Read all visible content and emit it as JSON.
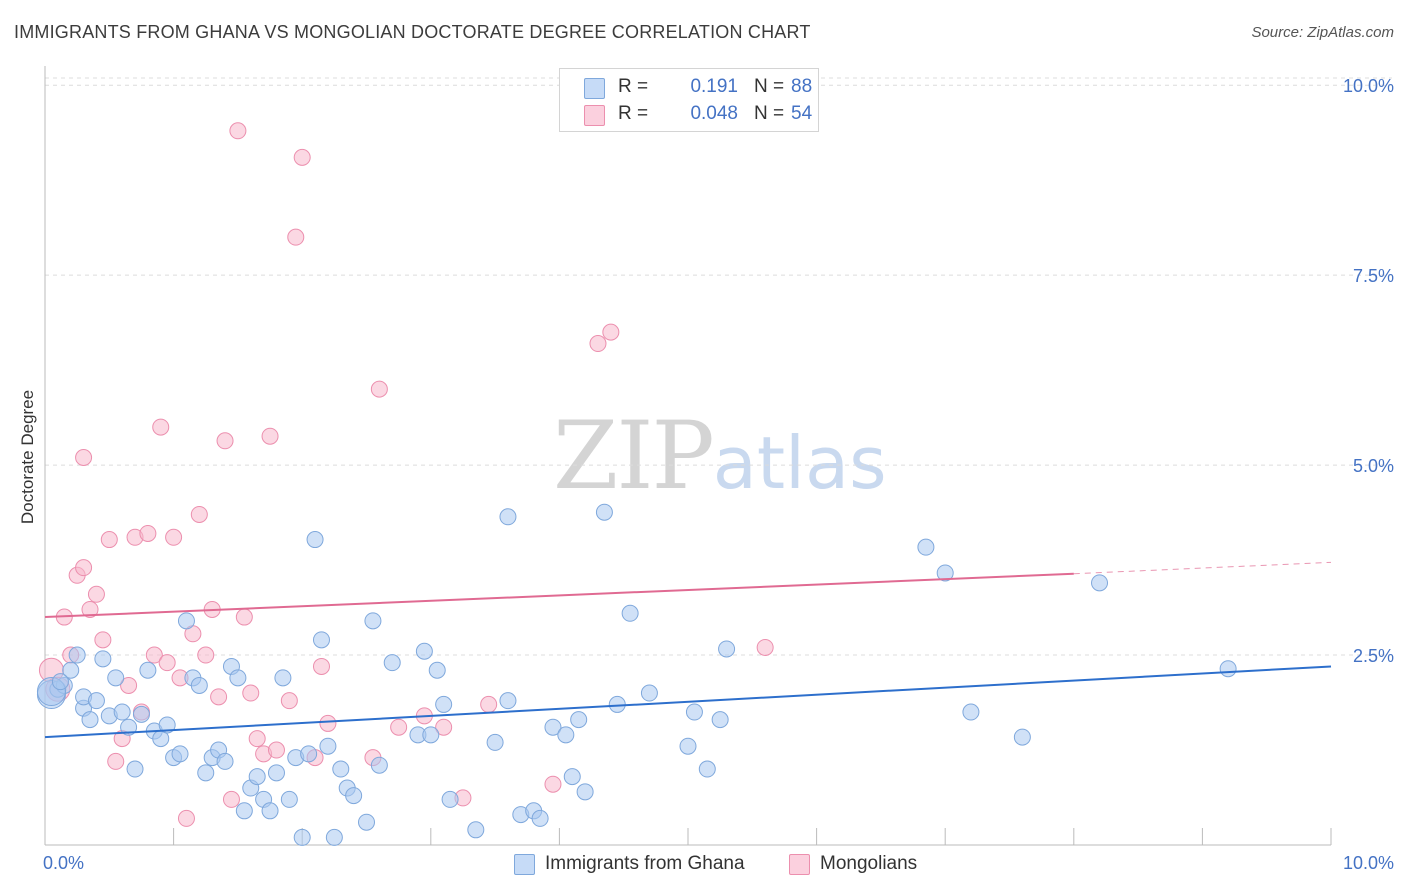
{
  "header": {
    "title": "IMMIGRANTS FROM GHANA VS MONGOLIAN DOCTORATE DEGREE CORRELATION CHART",
    "source": "Source: ZipAtlas.com"
  },
  "watermark": {
    "zip": "ZIP",
    "atlas": "atlas"
  },
  "legend": {
    "rows": [
      {
        "r_label": "R =",
        "r_value": "0.191",
        "n_label": "N =",
        "n_value": "88",
        "color": "#a9c8f0"
      },
      {
        "r_label": "R =",
        "r_value": "0.048",
        "n_label": "N =",
        "n_value": "54",
        "color": "#f7b8cc"
      }
    ]
  },
  "bottom_legend": {
    "series1": "Immigrants from Ghana",
    "series2": "Mongolians"
  },
  "colors": {
    "blue_fill": "#a9c8f0",
    "blue_stroke": "#7fa8dc",
    "blue_line": "#2d6fcc",
    "pink_fill": "#f7b8cc",
    "pink_stroke": "#ec8fae",
    "pink_line": "#e06a92",
    "grid": "#dcdcdc",
    "tick_label": "#4472c4"
  },
  "chart_data": {
    "type": "scatter",
    "title": "IMMIGRANTS FROM GHANA VS MONGOLIAN DOCTORATE DEGREE CORRELATION CHART",
    "xlabel": "",
    "ylabel": "Doctorate Degree",
    "xlim": [
      0,
      10
    ],
    "ylim": [
      0,
      10.2
    ],
    "x_tick_labels": [
      "0.0%",
      "10.0%"
    ],
    "y_ticks": [
      2.5,
      5.0,
      7.5,
      10.0
    ],
    "y_tick_labels": [
      "2.5%",
      "5.0%",
      "7.5%",
      "10.0%"
    ],
    "legend_position": "top-center",
    "series": [
      {
        "name": "Immigrants from Ghana",
        "r": 0.191,
        "n": 88,
        "trend": {
          "x0": 0,
          "y0": 1.42,
          "x1": 10,
          "y1": 2.35
        },
        "points": [
          [
            0.05,
            1.98
          ],
          [
            0.1,
            2.05
          ],
          [
            0.15,
            2.1
          ],
          [
            0.2,
            2.3
          ],
          [
            0.25,
            2.5
          ],
          [
            0.3,
            1.8
          ],
          [
            0.3,
            1.95
          ],
          [
            0.35,
            1.65
          ],
          [
            0.4,
            1.9
          ],
          [
            0.45,
            2.45
          ],
          [
            0.5,
            1.7
          ],
          [
            0.55,
            2.2
          ],
          [
            0.6,
            1.75
          ],
          [
            0.65,
            1.55
          ],
          [
            0.7,
            1.0
          ],
          [
            0.75,
            1.72
          ],
          [
            0.8,
            2.3
          ],
          [
            0.85,
            1.5
          ],
          [
            0.9,
            1.4
          ],
          [
            0.95,
            1.58
          ],
          [
            1.0,
            1.15
          ],
          [
            1.05,
            1.2
          ],
          [
            1.1,
            2.95
          ],
          [
            1.15,
            2.2
          ],
          [
            1.2,
            2.1
          ],
          [
            1.25,
            0.95
          ],
          [
            1.3,
            1.15
          ],
          [
            1.35,
            1.25
          ],
          [
            1.4,
            1.1
          ],
          [
            1.45,
            2.35
          ],
          [
            1.5,
            2.2
          ],
          [
            1.55,
            0.45
          ],
          [
            1.6,
            0.75
          ],
          [
            1.65,
            0.9
          ],
          [
            1.7,
            0.6
          ],
          [
            1.75,
            0.45
          ],
          [
            1.8,
            0.95
          ],
          [
            1.85,
            2.2
          ],
          [
            1.9,
            0.6
          ],
          [
            1.95,
            1.15
          ],
          [
            2.0,
            0.1
          ],
          [
            2.05,
            1.2
          ],
          [
            2.1,
            4.02
          ],
          [
            2.15,
            2.7
          ],
          [
            2.2,
            1.3
          ],
          [
            2.25,
            0.1
          ],
          [
            2.3,
            1.0
          ],
          [
            2.35,
            0.75
          ],
          [
            2.4,
            0.65
          ],
          [
            2.5,
            0.3
          ],
          [
            2.55,
            2.95
          ],
          [
            2.6,
            1.05
          ],
          [
            2.7,
            2.4
          ],
          [
            2.9,
            1.45
          ],
          [
            2.95,
            2.55
          ],
          [
            3.05,
            2.3
          ],
          [
            3.0,
            1.45
          ],
          [
            3.1,
            1.85
          ],
          [
            3.15,
            0.6
          ],
          [
            3.35,
            0.2
          ],
          [
            3.5,
            1.35
          ],
          [
            3.6,
            4.32
          ],
          [
            3.6,
            1.9
          ],
          [
            3.7,
            0.4
          ],
          [
            3.8,
            0.45
          ],
          [
            3.85,
            0.35
          ],
          [
            3.95,
            1.55
          ],
          [
            4.05,
            1.45
          ],
          [
            4.1,
            0.9
          ],
          [
            4.15,
            1.65
          ],
          [
            4.2,
            0.7
          ],
          [
            4.35,
            4.38
          ],
          [
            4.45,
            1.85
          ],
          [
            4.55,
            3.05
          ],
          [
            4.7,
            2.0
          ],
          [
            5.0,
            1.3
          ],
          [
            5.05,
            1.75
          ],
          [
            5.15,
            1.0
          ],
          [
            5.25,
            1.65
          ],
          [
            5.3,
            2.58
          ],
          [
            6.85,
            3.92
          ],
          [
            7.0,
            3.58
          ],
          [
            7.2,
            1.75
          ],
          [
            7.6,
            1.42
          ],
          [
            8.2,
            3.45
          ],
          [
            9.2,
            2.32
          ],
          [
            0.05,
            2.02
          ],
          [
            0.12,
            2.15
          ]
        ]
      },
      {
        "name": "Mongolians",
        "r": 0.048,
        "n": 54,
        "trend": {
          "x0": 0,
          "y0": 3.0,
          "x1": 8.0,
          "y1": 3.57,
          "dash_to_x": 10,
          "dash_to_y": 3.72
        },
        "points": [
          [
            0.05,
            2.3
          ],
          [
            0.1,
            2.05
          ],
          [
            0.15,
            3.0
          ],
          [
            0.2,
            2.5
          ],
          [
            0.25,
            3.55
          ],
          [
            0.3,
            3.65
          ],
          [
            0.35,
            3.1
          ],
          [
            0.3,
            5.1
          ],
          [
            0.4,
            3.3
          ],
          [
            0.45,
            2.7
          ],
          [
            0.5,
            4.02
          ],
          [
            0.55,
            1.1
          ],
          [
            0.6,
            1.4
          ],
          [
            0.65,
            2.1
          ],
          [
            0.7,
            4.05
          ],
          [
            0.75,
            1.75
          ],
          [
            0.8,
            4.1
          ],
          [
            0.85,
            2.5
          ],
          [
            0.9,
            5.5
          ],
          [
            0.95,
            2.4
          ],
          [
            1.0,
            4.05
          ],
          [
            1.05,
            2.2
          ],
          [
            1.1,
            0.35
          ],
          [
            1.15,
            2.78
          ],
          [
            1.2,
            4.35
          ],
          [
            1.25,
            2.5
          ],
          [
            1.3,
            3.1
          ],
          [
            1.35,
            1.95
          ],
          [
            1.4,
            5.32
          ],
          [
            1.45,
            0.6
          ],
          [
            1.5,
            9.4
          ],
          [
            1.55,
            3.0
          ],
          [
            1.6,
            2.0
          ],
          [
            1.65,
            1.4
          ],
          [
            1.7,
            1.2
          ],
          [
            1.75,
            5.38
          ],
          [
            1.8,
            1.25
          ],
          [
            1.9,
            1.9
          ],
          [
            1.95,
            8.0
          ],
          [
            2.0,
            9.05
          ],
          [
            2.1,
            1.15
          ],
          [
            2.15,
            2.35
          ],
          [
            2.2,
            1.6
          ],
          [
            2.55,
            1.15
          ],
          [
            2.6,
            6.0
          ],
          [
            2.75,
            1.55
          ],
          [
            2.95,
            1.7
          ],
          [
            3.1,
            1.55
          ],
          [
            3.25,
            0.62
          ],
          [
            3.45,
            1.85
          ],
          [
            3.95,
            0.8
          ],
          [
            4.3,
            6.6
          ],
          [
            4.4,
            6.75
          ],
          [
            5.6,
            2.6
          ]
        ]
      }
    ]
  }
}
